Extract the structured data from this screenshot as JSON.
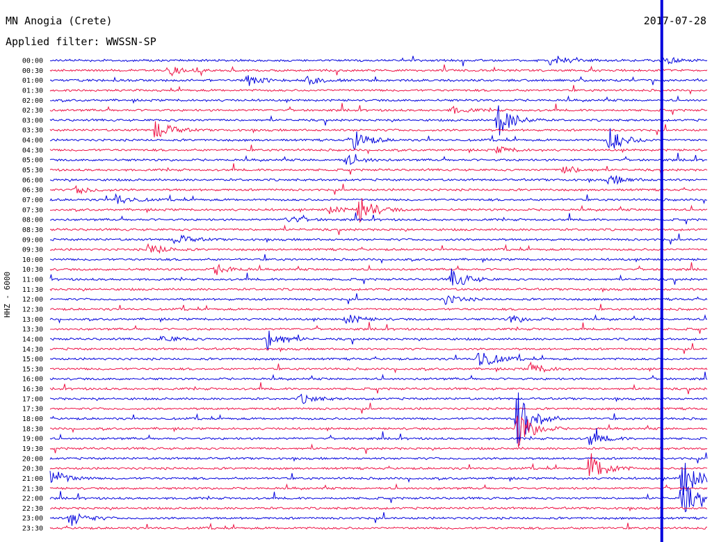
{
  "header": {
    "station": "MN Anogia (Crete)",
    "filter": "Applied filter: WWSSN-SP",
    "date": "2017-07-28"
  },
  "chart_data": {
    "type": "line",
    "title": "MN Anogia (Crete)",
    "ylabel": "HHZ - 6000",
    "trace_colors": [
      "#0000dd",
      "#ee1144"
    ],
    "marker_color": "#0000dd",
    "row_labels": [
      "00:00",
      "00:30",
      "01:00",
      "01:30",
      "02:00",
      "02:30",
      "03:00",
      "03:30",
      "04:00",
      "04:30",
      "05:00",
      "05:30",
      "06:00",
      "06:30",
      "07:00",
      "07:30",
      "08:00",
      "08:30",
      "09:00",
      "09:30",
      "10:00",
      "10:30",
      "11:00",
      "11:30",
      "12:00",
      "12:30",
      "13:00",
      "13:30",
      "14:00",
      "14:30",
      "15:00",
      "15:30",
      "16:00",
      "16:30",
      "17:00",
      "17:30",
      "18:00",
      "18:30",
      "19:00",
      "19:30",
      "20:00",
      "20:30",
      "21:00",
      "21:30",
      "22:00",
      "22:30",
      "23:00",
      "23:30"
    ],
    "current_time_fraction": 0.93,
    "events": [
      {
        "row": 0,
        "at": 0.76,
        "amp": 9
      },
      {
        "row": 0,
        "at": 0.93,
        "amp": 6
      },
      {
        "row": 1,
        "at": 0.18,
        "amp": 8
      },
      {
        "row": 2,
        "at": 0.3,
        "amp": 8
      },
      {
        "row": 2,
        "at": 0.39,
        "amp": 6
      },
      {
        "row": 5,
        "at": 0.61,
        "amp": 5
      },
      {
        "row": 6,
        "at": 0.68,
        "amp": 26
      },
      {
        "row": 7,
        "at": 0.16,
        "amp": 15
      },
      {
        "row": 8,
        "at": 0.46,
        "amp": 16
      },
      {
        "row": 8,
        "at": 0.85,
        "amp": 18
      },
      {
        "row": 9,
        "at": 0.68,
        "amp": 5
      },
      {
        "row": 10,
        "at": 0.45,
        "amp": 8
      },
      {
        "row": 11,
        "at": 0.78,
        "amp": 7
      },
      {
        "row": 12,
        "at": 0.85,
        "amp": 8
      },
      {
        "row": 13,
        "at": 0.04,
        "amp": 6
      },
      {
        "row": 14,
        "at": 0.1,
        "amp": 8
      },
      {
        "row": 15,
        "at": 0.47,
        "amp": 20
      },
      {
        "row": 15,
        "at": 0.42,
        "amp": 6
      },
      {
        "row": 16,
        "at": 0.36,
        "amp": 6
      },
      {
        "row": 18,
        "at": 0.19,
        "amp": 8
      },
      {
        "row": 19,
        "at": 0.15,
        "amp": 9
      },
      {
        "row": 21,
        "at": 0.25,
        "amp": 8
      },
      {
        "row": 22,
        "at": 0.61,
        "amp": 15
      },
      {
        "row": 24,
        "at": 0.6,
        "amp": 7
      },
      {
        "row": 26,
        "at": 0.45,
        "amp": 7
      },
      {
        "row": 26,
        "at": 0.7,
        "amp": 6
      },
      {
        "row": 28,
        "at": 0.33,
        "amp": 17
      },
      {
        "row": 28,
        "at": 0.17,
        "amp": 5
      },
      {
        "row": 30,
        "at": 0.65,
        "amp": 18
      },
      {
        "row": 31,
        "at": 0.73,
        "amp": 9
      },
      {
        "row": 34,
        "at": 0.38,
        "amp": 7
      },
      {
        "row": 36,
        "at": 0.71,
        "amp": 45
      },
      {
        "row": 37,
        "at": 0.71,
        "amp": 30
      },
      {
        "row": 38,
        "at": 0.82,
        "amp": 10
      },
      {
        "row": 41,
        "at": 0.82,
        "amp": 25
      },
      {
        "row": 42,
        "at": 0.0,
        "amp": 15
      },
      {
        "row": 42,
        "at": 0.96,
        "amp": 30
      },
      {
        "row": 44,
        "at": 0.96,
        "amp": 25
      },
      {
        "row": 46,
        "at": 0.03,
        "amp": 12
      }
    ]
  }
}
